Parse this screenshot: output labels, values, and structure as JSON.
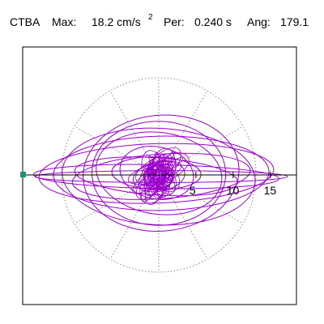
{
  "header": {
    "station": "CTBA",
    "max_label": "Max:",
    "max_value": "18.2 cm/s",
    "max_exp": "2",
    "per_label": "Per:",
    "per_value": "0.240 s",
    "ang_label": "Ang:",
    "ang_value": "179.1"
  },
  "colors": {
    "trace": "#9900cc",
    "marker": "#119977",
    "axis": "#000000",
    "grid": "#888888",
    "frame": "#000000"
  },
  "chart_data": {
    "type": "line",
    "title": "",
    "xlabel": "",
    "ylabel": "",
    "grid": "polar-dotted",
    "radial_range": [
      0,
      18.2
    ],
    "tick_values": [
      5,
      10,
      15
    ],
    "tick_labels": [
      "5",
      "10",
      "15"
    ],
    "max_amplitude": 18.2,
    "direction_angle_deg": 179.1,
    "series": [
      {
        "values_description_free": true,
        "ellipses": [
          [
            15.8,
            4.0,
            -2
          ],
          [
            13.0,
            6.5,
            3
          ],
          [
            10.5,
            7.8,
            -5
          ],
          [
            16.5,
            1.6,
            1
          ],
          [
            8.5,
            5.5,
            8
          ],
          [
            12.0,
            3.0,
            -4
          ],
          [
            6.0,
            2.2,
            2
          ],
          [
            3.5,
            2.0,
            -10
          ],
          [
            14.5,
            5.0,
            -1
          ],
          [
            11.0,
            2.5,
            4
          ],
          [
            9.0,
            7.0,
            1
          ],
          [
            17.0,
            0.8,
            0
          ],
          [
            5.0,
            3.5,
            12
          ],
          [
            2.0,
            1.5,
            0
          ]
        ]
      }
    ]
  }
}
